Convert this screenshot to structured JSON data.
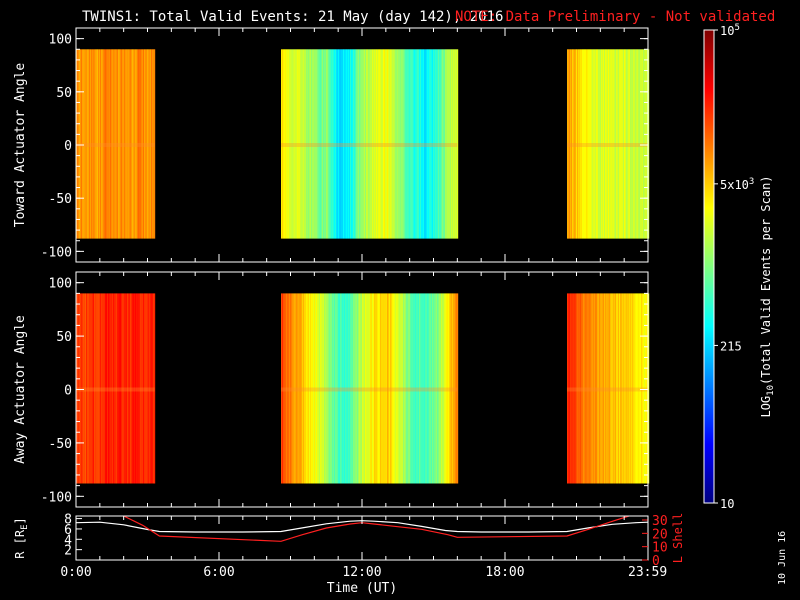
{
  "header": {
    "title": "TWINS1: Total Valid Events: 21 May (day 142), 2016",
    "note": "NOTE: Data Preliminary - Not validated",
    "note_color": "#ff2020"
  },
  "footer": {
    "date_stamp": "10 Jun 16"
  },
  "chart_data": [
    {
      "type": "heatmap",
      "panel": "top",
      "ylabel": "Toward Actuator Angle",
      "ylim": [
        -110,
        110
      ],
      "yticks": [
        100,
        50,
        0,
        -50,
        -100
      ],
      "ytick_labels": [
        "100",
        "50",
        "0",
        "-50",
        "-100"
      ],
      "xlim_hours": [
        0,
        24
      ],
      "data_angle_range": [
        -88,
        90
      ],
      "data_blocks": [
        {
          "start": 0.0,
          "end": 3.3,
          "profile": [
            [
              0.0,
              0.74
            ],
            [
              0.03,
              0.72
            ],
            [
              0.06,
              0.75
            ],
            [
              0.1,
              0.71
            ],
            [
              0.15,
              0.73
            ],
            [
              0.2,
              0.74
            ],
            [
              0.25,
              0.7
            ],
            [
              0.3,
              0.73
            ],
            [
              0.4,
              0.75
            ],
            [
              0.5,
              0.72
            ],
            [
              0.6,
              0.74
            ],
            [
              0.7,
              0.72
            ],
            [
              0.8,
              0.75
            ],
            [
              0.9,
              0.73
            ],
            [
              1.0,
              0.74
            ]
          ]
        },
        {
          "start": 8.6,
          "end": 16.0,
          "profile": [
            [
              0.0,
              0.66
            ],
            [
              0.03,
              0.62
            ],
            [
              0.06,
              0.58
            ],
            [
              0.1,
              0.6
            ],
            [
              0.14,
              0.55
            ],
            [
              0.18,
              0.52
            ],
            [
              0.22,
              0.48
            ],
            [
              0.26,
              0.52
            ],
            [
              0.28,
              0.42
            ],
            [
              0.32,
              0.36
            ],
            [
              0.37,
              0.35
            ],
            [
              0.4,
              0.4
            ],
            [
              0.44,
              0.5
            ],
            [
              0.48,
              0.55
            ],
            [
              0.52,
              0.58
            ],
            [
              0.56,
              0.6
            ],
            [
              0.6,
              0.62
            ],
            [
              0.64,
              0.55
            ],
            [
              0.68,
              0.5
            ],
            [
              0.72,
              0.45
            ],
            [
              0.75,
              0.4
            ],
            [
              0.78,
              0.42
            ],
            [
              0.8,
              0.36
            ],
            [
              0.84,
              0.38
            ],
            [
              0.88,
              0.42
            ],
            [
              0.91,
              0.48
            ],
            [
              0.94,
              0.53
            ],
            [
              0.97,
              0.58
            ],
            [
              1.0,
              0.6
            ]
          ]
        },
        {
          "start": 20.6,
          "end": 24.0,
          "profile": [
            [
              0.0,
              0.72
            ],
            [
              0.05,
              0.7
            ],
            [
              0.1,
              0.68
            ],
            [
              0.2,
              0.64
            ],
            [
              0.3,
              0.6
            ],
            [
              0.4,
              0.58
            ],
            [
              0.5,
              0.6
            ],
            [
              0.6,
              0.57
            ],
            [
              0.7,
              0.59
            ],
            [
              0.8,
              0.57
            ],
            [
              0.9,
              0.58
            ],
            [
              1.0,
              0.56
            ]
          ]
        }
      ]
    },
    {
      "type": "heatmap",
      "panel": "middle",
      "ylabel": "Away Actuator Angle",
      "ylim": [
        -110,
        110
      ],
      "yticks": [
        100,
        50,
        0,
        -50,
        -100
      ],
      "ytick_labels": [
        "100",
        "50",
        "0",
        "-50",
        "-100"
      ],
      "xlim_hours": [
        0,
        24
      ],
      "data_angle_range": [
        -88,
        90
      ],
      "data_blocks": [
        {
          "start": 0.0,
          "end": 3.3,
          "profile": [
            [
              0.0,
              0.84
            ],
            [
              0.03,
              0.82
            ],
            [
              0.06,
              0.85
            ],
            [
              0.1,
              0.8
            ],
            [
              0.15,
              0.83
            ],
            [
              0.2,
              0.85
            ],
            [
              0.25,
              0.82
            ],
            [
              0.3,
              0.84
            ],
            [
              0.4,
              0.85
            ],
            [
              0.5,
              0.84
            ],
            [
              0.6,
              0.85
            ],
            [
              0.7,
              0.84
            ],
            [
              0.8,
              0.85
            ],
            [
              0.9,
              0.84
            ],
            [
              1.0,
              0.85
            ]
          ]
        },
        {
          "start": 8.6,
          "end": 16.0,
          "profile": [
            [
              0.0,
              0.82
            ],
            [
              0.03,
              0.78
            ],
            [
              0.06,
              0.74
            ],
            [
              0.1,
              0.7
            ],
            [
              0.14,
              0.66
            ],
            [
              0.18,
              0.62
            ],
            [
              0.22,
              0.58
            ],
            [
              0.26,
              0.55
            ],
            [
              0.28,
              0.48
            ],
            [
              0.32,
              0.44
            ],
            [
              0.37,
              0.42
            ],
            [
              0.4,
              0.46
            ],
            [
              0.44,
              0.54
            ],
            [
              0.48,
              0.6
            ],
            [
              0.52,
              0.64
            ],
            [
              0.56,
              0.66
            ],
            [
              0.6,
              0.68
            ],
            [
              0.64,
              0.62
            ],
            [
              0.68,
              0.56
            ],
            [
              0.72,
              0.5
            ],
            [
              0.75,
              0.45
            ],
            [
              0.78,
              0.46
            ],
            [
              0.8,
              0.42
            ],
            [
              0.84,
              0.45
            ],
            [
              0.88,
              0.5
            ],
            [
              0.91,
              0.56
            ],
            [
              0.94,
              0.62
            ],
            [
              0.97,
              0.7
            ],
            [
              1.0,
              0.74
            ]
          ]
        },
        {
          "start": 20.6,
          "end": 24.0,
          "profile": [
            [
              0.0,
              0.84
            ],
            [
              0.05,
              0.82
            ],
            [
              0.1,
              0.8
            ],
            [
              0.2,
              0.76
            ],
            [
              0.3,
              0.74
            ],
            [
              0.4,
              0.72
            ],
            [
              0.5,
              0.7
            ],
            [
              0.6,
              0.68
            ],
            [
              0.7,
              0.66
            ],
            [
              0.8,
              0.65
            ],
            [
              0.9,
              0.64
            ],
            [
              1.0,
              0.62
            ]
          ]
        }
      ]
    },
    {
      "type": "line",
      "panel": "bottom",
      "ylabel_left": "R [R",
      "ylabel_left_sub": "E",
      "ylabel_left_close": "]",
      "ylabel_right": "L Shell",
      "ylim_left": [
        0,
        8.5
      ],
      "ylim_right": [
        0,
        33
      ],
      "yticks_left": [
        2,
        4,
        6,
        8
      ],
      "yticks_right": [
        0,
        10,
        20,
        30
      ],
      "xlabel": "Time (UT)",
      "xlim_hours": [
        0,
        24
      ],
      "xtick_hours": [
        0,
        6,
        12,
        18,
        23.983
      ],
      "xtick_labels": [
        "0:00",
        "6:00",
        "12:00",
        "18:00",
        "23:59"
      ],
      "series": [
        {
          "color": "#ffffff",
          "axis": "left",
          "x": [
            0,
            1,
            2,
            3,
            3.5,
            5,
            7,
            8.6,
            9.5,
            10.5,
            11.5,
            12,
            12.5,
            13.5,
            14.5,
            15.5,
            16,
            17,
            19,
            20.6,
            21.5,
            22.5,
            23.5,
            24
          ],
          "y": [
            7.2,
            7.3,
            6.8,
            5.9,
            5.5,
            5.4,
            5.4,
            5.5,
            6.2,
            7.0,
            7.5,
            7.6,
            7.5,
            7.2,
            6.5,
            5.7,
            5.5,
            5.4,
            5.4,
            5.5,
            6.2,
            6.9,
            7.2,
            7.3
          ]
        },
        {
          "color": "#ff2020",
          "axis": "right",
          "x": [
            2.0,
            2.8,
            3.5,
            8.6,
            9.5,
            10.5,
            11.5,
            12.0,
            12.5,
            13.5,
            14.5,
            15.6,
            16.0,
            20.6,
            21.5,
            22.5,
            23.2
          ],
          "y": [
            33,
            26,
            18,
            14,
            19,
            24,
            27,
            28,
            27,
            25,
            23,
            19,
            17,
            18,
            23,
            29,
            33
          ]
        }
      ]
    },
    {
      "type": "colorbar",
      "label": "LOG",
      "label_sub": "10",
      "label_tail": "(Total Valid Events per Scan)",
      "scale": "log",
      "range": [
        10,
        100000
      ],
      "ticks": [
        {
          "value": 10,
          "label": "10"
        },
        {
          "value": 215,
          "label": "215"
        },
        {
          "value": 5000,
          "label": "5x10",
          "sup": "3"
        },
        {
          "value": 100000,
          "label": "10",
          "sup": "5"
        }
      ]
    }
  ]
}
